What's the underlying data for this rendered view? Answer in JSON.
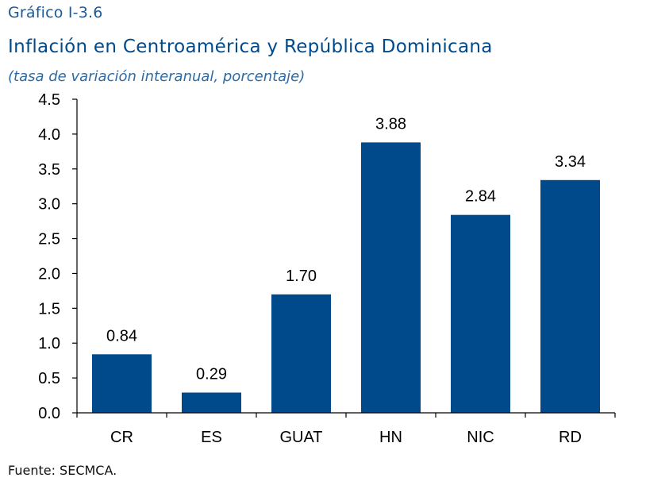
{
  "header": {
    "figure_label": "Gráfico I-3.6",
    "title": "Inflación en Centroamérica y República Dominicana",
    "subtitle": "(tasa de variación interanual, porcentaje)"
  },
  "footer": {
    "source": "Fuente: SECMCA."
  },
  "colors": {
    "bar": "#004a8c",
    "axis": "#000000"
  },
  "chart_data": {
    "type": "bar",
    "categories": [
      "CR",
      "ES",
      "GUAT",
      "HN",
      "NIC",
      "RD"
    ],
    "values": [
      0.84,
      0.29,
      1.7,
      3.88,
      2.84,
      3.34
    ],
    "data_labels": [
      "0.84",
      "0.29",
      "1.70",
      "3.88",
      "2.84",
      "3.34"
    ],
    "title": "Inflación en Centroamérica y República Dominicana",
    "subtitle": "(tasa de variación interanual, porcentaje)",
    "xlabel": "",
    "ylabel": "",
    "ylim": [
      0,
      4.5
    ],
    "yticks": [
      0.0,
      0.5,
      1.0,
      1.5,
      2.0,
      2.5,
      3.0,
      3.5,
      4.0,
      4.5
    ],
    "ytick_labels": [
      "0.0",
      "0.5",
      "1.0",
      "1.5",
      "2.0",
      "2.5",
      "3.0",
      "3.5",
      "4.0",
      "4.5"
    ],
    "grid": false,
    "legend": "none"
  }
}
